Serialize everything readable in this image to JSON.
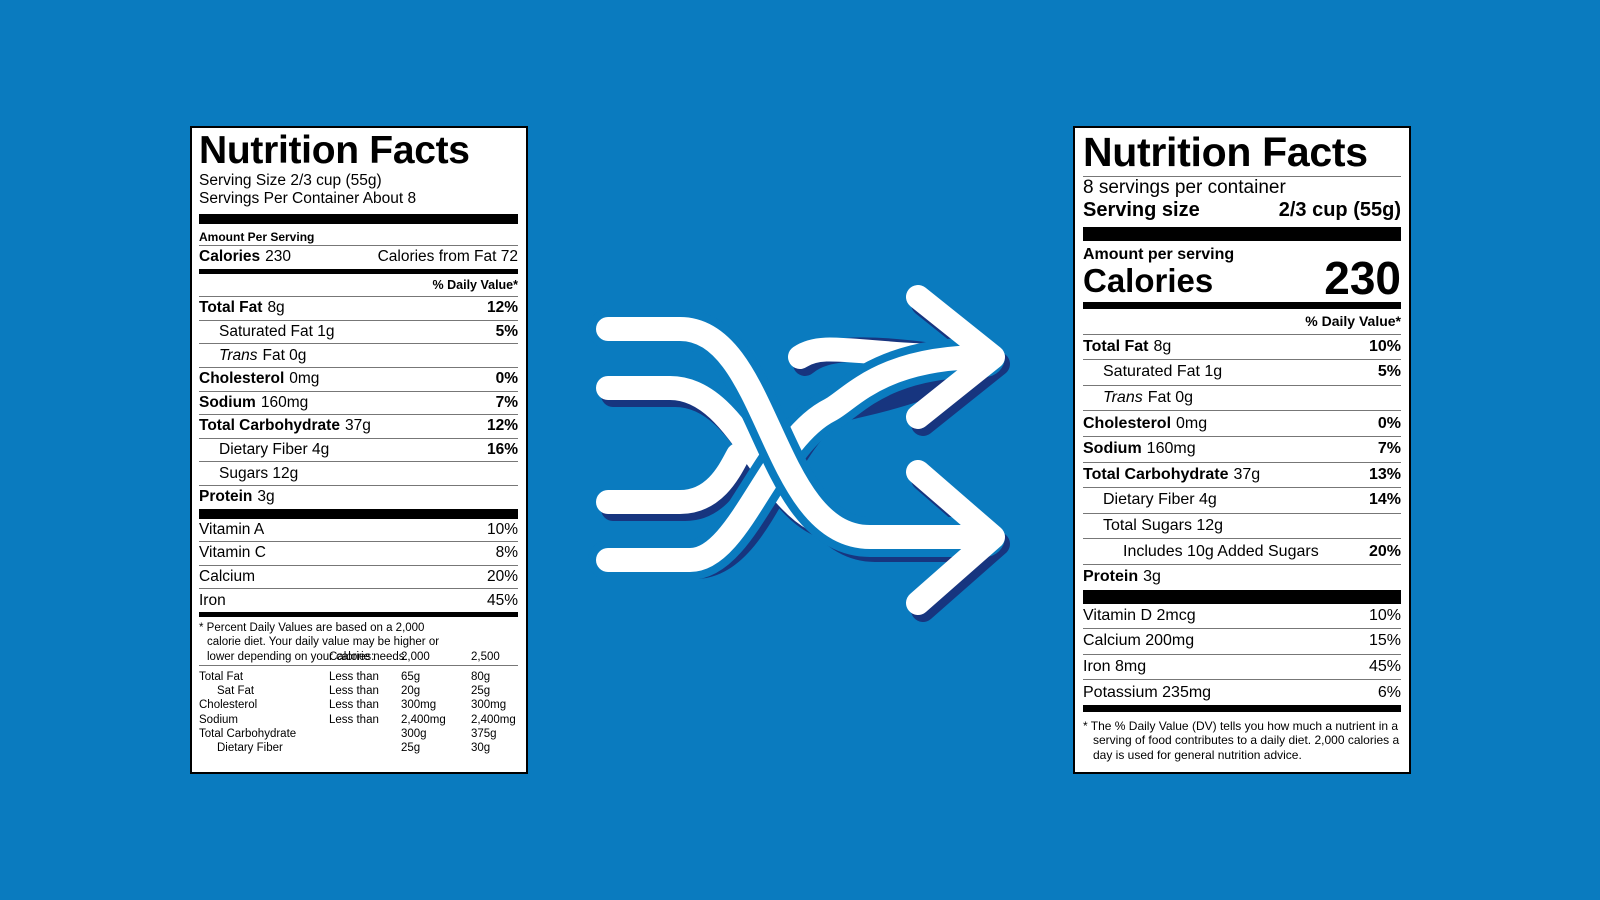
{
  "old_label": {
    "title": "Nutrition Facts",
    "serving_size": "Serving Size 2/3 cup (55g)",
    "servings": "Servings Per Container About 8",
    "amount_per_serving": "Amount Per Serving",
    "calories_label": "Calories",
    "calories_value": "230",
    "calories_from_fat": "Calories from Fat 72",
    "dv_header": "% Daily Value*",
    "nutrients": [
      {
        "name": "Total Fat",
        "amount": "8g",
        "dv": "12%"
      },
      {
        "name": "Saturated Fat 1g",
        "dv": "5%"
      },
      {
        "prefix": "Trans",
        "name": "Fat 0g"
      },
      {
        "name": "Cholesterol",
        "amount": "0mg",
        "dv": "0%"
      },
      {
        "name": "Sodium",
        "amount": "160mg",
        "dv": "7%"
      },
      {
        "name": "Total Carbohydrate",
        "amount": "37g",
        "dv": "12%"
      },
      {
        "name": "Dietary Fiber 4g",
        "dv": "16%"
      },
      {
        "name": "Sugars 12g"
      },
      {
        "name": "Protein",
        "amount": "3g"
      }
    ],
    "vitamins": [
      {
        "name": "Vitamin A",
        "dv": "10%"
      },
      {
        "name": "Vitamin C",
        "dv": "8%"
      },
      {
        "name": "Calcium",
        "dv": "20%"
      },
      {
        "name": "Iron",
        "dv": "45%"
      }
    ],
    "footnote": "* Percent Daily Values are based on a 2,000 calorie diet. Your daily value may be higher or lower depending on your calorie needs.",
    "dv_table": {
      "header": [
        "Calories:",
        "2,000",
        "2,500"
      ],
      "rows": [
        {
          "nutrient": "Total Fat",
          "limit": "Less than",
          "v1": "65g",
          "v2": "80g"
        },
        {
          "nutrient": "Sat Fat",
          "limit": "Less than",
          "v1": "20g",
          "v2": "25g"
        },
        {
          "nutrient": "Cholesterol",
          "limit": "Less than",
          "v1": "300mg",
          "v2": "300mg"
        },
        {
          "nutrient": "Sodium",
          "limit": "Less than",
          "v1": "2,400mg",
          "v2": "2,400mg"
        },
        {
          "nutrient": "Total Carbohydrate",
          "v1": "300g",
          "v2": "375g"
        },
        {
          "nutrient": "Dietary Fiber",
          "v1": "25g",
          "v2": "30g"
        }
      ]
    }
  },
  "new_label": {
    "title": "Nutrition Facts",
    "servings": "8 servings per container",
    "serving_size_label": "Serving size",
    "serving_size_value": "2/3 cup (55g)",
    "amount_per_serving": "Amount per serving",
    "calories_label": "Calories",
    "calories_value": "230",
    "dv_header": "% Daily Value*",
    "nutrients": [
      {
        "name": "Total Fat",
        "amount": "8g",
        "dv": "10%"
      },
      {
        "name": "Saturated Fat 1g",
        "dv": "5%"
      },
      {
        "prefix": "Trans",
        "name": "Fat 0g"
      },
      {
        "name": "Cholesterol",
        "amount": "0mg",
        "dv": "0%"
      },
      {
        "name": "Sodium",
        "amount": "160mg",
        "dv": "7%"
      },
      {
        "name": "Total Carbohydrate",
        "amount": "37g",
        "dv": "13%"
      },
      {
        "name": "Dietary Fiber 4g",
        "dv": "14%"
      },
      {
        "name": "Total Sugars 12g"
      },
      {
        "name": "Includes 10g Added Sugars",
        "dv": "20%"
      },
      {
        "name": "Protein",
        "amount": "3g"
      }
    ],
    "vitamins": [
      {
        "name": "Vitamin D 2mcg",
        "dv": "10%"
      },
      {
        "name": "Calcium 200mg",
        "dv": "15%"
      },
      {
        "name": "Iron 8mg",
        "dv": "45%"
      },
      {
        "name": "Potassium 235mg",
        "dv": "6%"
      }
    ],
    "footnote": "* The % Daily Value (DV) tells you how much a nutrient in a serving of food contributes to a daily diet. 2,000 calories a day is used for general nutrition advice."
  }
}
